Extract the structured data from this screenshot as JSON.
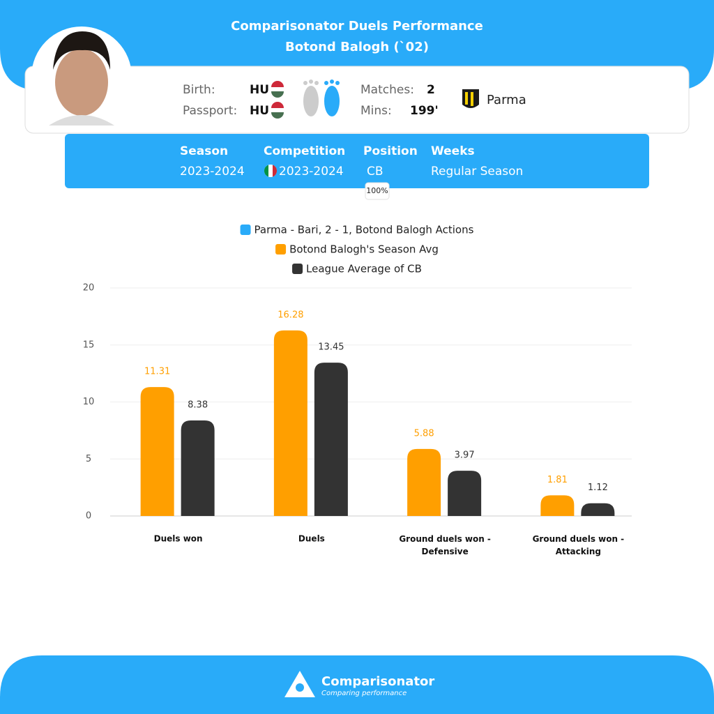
{
  "header": {
    "title": "Comparisonator Duels Performance",
    "subtitle": "Botond Balogh (`02)"
  },
  "player": {
    "birth_label": "Birth:",
    "birth": "HU",
    "passport_label": "Passport:",
    "passport": "HU",
    "matches_label": "Matches:",
    "matches": 2,
    "mins_label": "Mins:",
    "mins": "199'",
    "team": "Parma"
  },
  "filters": {
    "headers": [
      "Season",
      "Competition",
      "Position",
      "Weeks"
    ],
    "values": [
      "2023-2024",
      "2023-2024",
      "CB",
      "Regular Season"
    ],
    "position_share": "100%"
  },
  "chart_data": {
    "type": "bar",
    "categories": [
      "Duels won",
      "Duels",
      "Ground duels won - Defensive",
      "Ground duels won - Attacking"
    ],
    "series": [
      {
        "name": "Parma - Bari, 2 - 1, Botond Balogh Actions",
        "color": "#29abf9",
        "values": [
          null,
          null,
          null,
          null
        ]
      },
      {
        "name": "Botond Balogh's Season Avg",
        "color": "#ff9f00",
        "values": [
          11.31,
          16.28,
          5.88,
          1.81
        ]
      },
      {
        "name": "League Average of CB",
        "color": "#333333",
        "values": [
          8.38,
          13.45,
          3.97,
          1.12
        ]
      }
    ],
    "ylim": [
      0,
      20
    ],
    "yticks": [
      0,
      5,
      10,
      15,
      20
    ],
    "grid": true,
    "legend": "top",
    "data_labels": true
  },
  "footer": {
    "brand": "Comparisonator",
    "tagline": "Comparing performance"
  }
}
